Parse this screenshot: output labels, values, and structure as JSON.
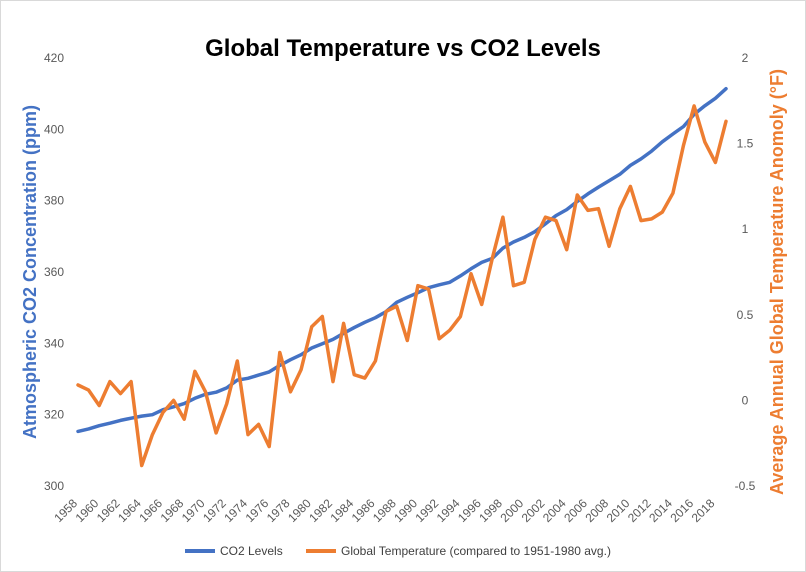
{
  "colors": {
    "co2": "#4472c4",
    "temperature": "#ed7d31",
    "left_axis_title": "#4472c4",
    "right_axis_title": "#ed7d31"
  },
  "chart_data": {
    "type": "line",
    "title": "Global Temperature vs CO2 Levels",
    "xlabel": "",
    "x": [
      1958,
      1959,
      1960,
      1961,
      1962,
      1963,
      1964,
      1965,
      1966,
      1967,
      1968,
      1969,
      1970,
      1971,
      1972,
      1973,
      1974,
      1975,
      1976,
      1977,
      1978,
      1979,
      1980,
      1981,
      1982,
      1983,
      1984,
      1985,
      1986,
      1987,
      1988,
      1989,
      1990,
      1991,
      1992,
      1993,
      1994,
      1995,
      1996,
      1997,
      1998,
      1999,
      2000,
      2001,
      2002,
      2003,
      2004,
      2005,
      2006,
      2007,
      2008,
      2009,
      2010,
      2011,
      2012,
      2013,
      2014,
      2015,
      2016,
      2017,
      2018,
      2019
    ],
    "x_tick_labels": [
      "1958",
      "1960",
      "1962",
      "1964",
      "1966",
      "1968",
      "1970",
      "1972",
      "1974",
      "1976",
      "1978",
      "1980",
      "1982",
      "1984",
      "1986",
      "1988",
      "1990",
      "1992",
      "1994",
      "1996",
      "1998",
      "2000",
      "2002",
      "2004",
      "2006",
      "2008",
      "2010",
      "2012",
      "2014",
      "2016",
      "2018"
    ],
    "y_left": {
      "label": "Atmospheric CO2 Concentration (ppm)",
      "ylim": [
        300,
        420
      ],
      "ticks": [
        "300",
        "320",
        "340",
        "360",
        "380",
        "400",
        "420"
      ]
    },
    "y_right": {
      "label": "Average Annual Global  Temperature Anomoly (°F)",
      "ylim": [
        -0.5,
        2
      ],
      "ticks": [
        "-0.5",
        "0",
        "0.5",
        "1",
        "1.5",
        "2"
      ]
    },
    "grid": false,
    "legend_position": "bottom",
    "series": [
      {
        "name": "CO2 Levels",
        "axis": "left",
        "values": [
          315.3,
          316.0,
          316.9,
          317.6,
          318.4,
          319.0,
          319.6,
          320.0,
          321.4,
          322.2,
          323.1,
          324.6,
          325.7,
          326.3,
          327.5,
          329.7,
          330.2,
          331.1,
          332.0,
          333.8,
          335.4,
          336.8,
          338.7,
          339.9,
          341.1,
          342.8,
          344.4,
          345.9,
          347.2,
          348.9,
          351.5,
          352.9,
          354.2,
          355.6,
          356.4,
          357.1,
          358.9,
          360.9,
          362.7,
          363.8,
          366.7,
          368.4,
          369.7,
          371.3,
          373.5,
          375.8,
          377.5,
          379.8,
          381.9,
          383.8,
          385.6,
          387.4,
          389.9,
          391.7,
          393.9,
          396.5,
          398.7,
          400.8,
          404.2,
          406.6,
          408.7,
          411.4
        ]
      },
      {
        "name": "Global Temperature (compared to 1951-1980 avg.)",
        "axis": "right",
        "values": [
          0.09,
          0.06,
          -0.03,
          0.11,
          0.04,
          0.11,
          -0.38,
          -0.2,
          -0.07,
          0.0,
          -0.11,
          0.17,
          0.05,
          -0.19,
          -0.02,
          0.23,
          -0.2,
          -0.14,
          -0.27,
          0.28,
          0.05,
          0.18,
          0.43,
          0.49,
          0.11,
          0.45,
          0.15,
          0.13,
          0.23,
          0.52,
          0.55,
          0.35,
          0.67,
          0.65,
          0.36,
          0.41,
          0.49,
          0.74,
          0.56,
          0.83,
          1.07,
          0.67,
          0.69,
          0.94,
          1.07,
          1.05,
          0.88,
          1.2,
          1.11,
          1.12,
          0.9,
          1.12,
          1.25,
          1.05,
          1.06,
          1.1,
          1.21,
          1.49,
          1.72,
          1.51,
          1.39,
          1.63
        ]
      }
    ]
  }
}
